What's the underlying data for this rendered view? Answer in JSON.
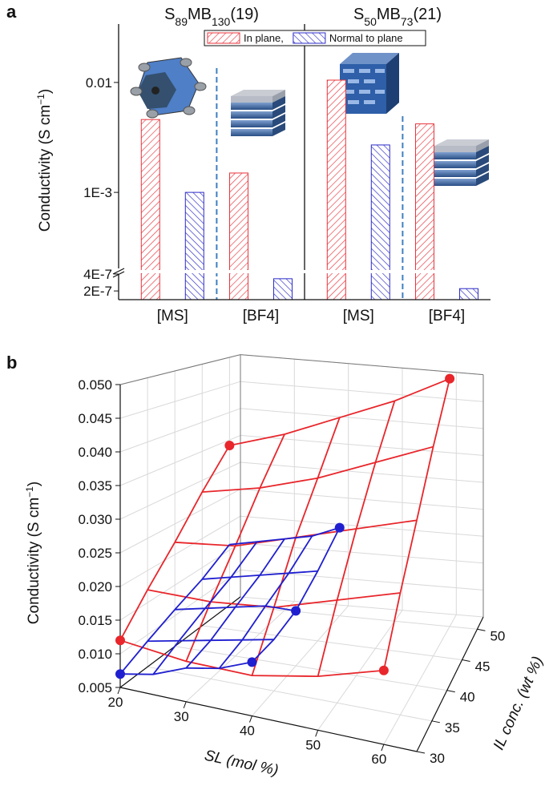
{
  "chart_data": [
    {
      "type": "bar",
      "label": "a",
      "ylabel": [
        "Conductivity (S cm",
        "−1",
        ")"
      ],
      "yscale": "log",
      "ylim": [
        1.4e-07,
        0.034
      ],
      "ybreak": [
        4e-07,
        0.0002
      ],
      "yticks": [
        0.01,
        {
          "value": 0.001,
          "label": "1E-3"
        },
        {
          "value": 4e-07,
          "label": "4E-7"
        },
        {
          "value": 2e-07,
          "label": "2E-7"
        }
      ],
      "groups": [
        [
          "S",
          "89",
          "MB",
          "130",
          "(19)"
        ],
        [
          "S",
          "50",
          "MB",
          "73",
          "(21)"
        ]
      ],
      "categories": [
        "[MS]",
        "[BF4]",
        "[MS]",
        "[BF4]"
      ],
      "series": [
        {
          "name": "In plane,",
          "color": "#e8343c",
          "values": [
            0.0046,
            0.0015,
            0.0105,
            0.0042
          ]
        },
        {
          "name": "Normal to plane",
          "color": "#2b2bc8",
          "values": [
            0.001,
            3.3e-07,
            0.0027,
            2.2e-07
          ]
        }
      ]
    },
    {
      "type": "surface3d",
      "label": "b",
      "xlabel": "SL (mol %)",
      "ylabel": "IL conc. (wt %)",
      "zlabel": [
        "Conductivity (S cm",
        "−1",
        ")"
      ],
      "xlim": [
        20,
        65
      ],
      "ylim": [
        30,
        52
      ],
      "zlim": [
        0.005,
        0.05
      ],
      "xticks": [
        20,
        30,
        40,
        50,
        60
      ],
      "yticks": [
        30,
        35,
        40,
        45,
        50
      ],
      "zticks": [
        {
          "value": 0.05,
          "label": "0.050"
        },
        0.045,
        {
          "value": 0.04,
          "label": "0.040"
        },
        0.035,
        {
          "value": 0.03,
          "label": "0.030"
        },
        0.025,
        {
          "value": 0.02,
          "label": "0.020"
        },
        0.015,
        {
          "value": 0.01,
          "label": "0.010"
        },
        0.005
      ],
      "grid": true,
      "surfaces": [
        {
          "color": "#e8262b",
          "x": [
            20,
            30,
            40,
            50,
            60
          ],
          "y": [
            30,
            35,
            40,
            45,
            50
          ],
          "z": [
            [
              0.012,
              0.017,
              0.022,
              0.028,
              0.034
            ],
            [
              0.011,
              0.017,
              0.023,
              0.03,
              0.037
            ],
            [
              0.011,
              0.018,
              0.026,
              0.033,
              0.041
            ],
            [
              0.013,
              0.021,
              0.029,
              0.037,
              0.045
            ],
            [
              0.016,
              0.024,
              0.032,
              0.041,
              0.05
            ]
          ],
          "points": {
            "x": [
              20,
              20,
              60,
              60
            ],
            "y": [
              30,
              50,
              30,
              50
            ],
            "z": [
              0.012,
              0.034,
              0.016,
              0.05
            ]
          }
        },
        {
          "color": "#1f1fd0",
          "x": [
            20,
            25,
            30,
            35,
            40
          ],
          "y": [
            30,
            35,
            40,
            45,
            50
          ],
          "z": [
            [
              0.007,
              0.009,
              0.011,
              0.013,
              0.016
            ],
            [
              0.008,
              0.01,
              0.012,
              0.014,
              0.017
            ],
            [
              0.01,
              0.011,
              0.013,
              0.015,
              0.018
            ],
            [
              0.011,
              0.012,
              0.014,
              0.016,
              0.019
            ],
            [
              0.013,
              0.013,
              0.014,
              0.017,
              0.021
            ]
          ],
          "points": {
            "x": [
              20,
              40,
              40,
              40
            ],
            "y": [
              30,
              30,
              40,
              50
            ],
            "z": [
              0.007,
              0.013,
              0.014,
              0.021
            ]
          }
        }
      ]
    }
  ]
}
